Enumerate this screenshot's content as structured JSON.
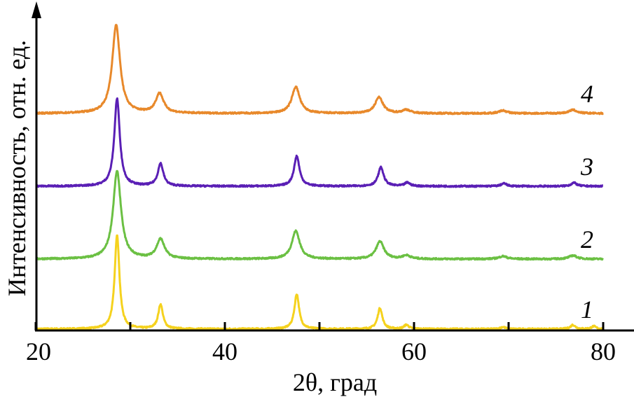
{
  "chart_data": {
    "type": "line",
    "title": "",
    "xlabel": "2θ, град",
    "ylabel": "Интенсивность, отн. ед.",
    "xlim": [
      20,
      80
    ],
    "x_ticks": [
      20,
      30,
      40,
      50,
      60,
      70,
      80
    ],
    "x_tick_labels": [
      "20",
      "40",
      "60",
      "80"
    ],
    "y_ticks": false,
    "grid": false,
    "stacked_offsets": true,
    "series": [
      {
        "label": "1",
        "color": "#f5d21e",
        "offset": 0,
        "width": 0.3,
        "peaks": [
          [
            28.6,
            135
          ],
          [
            33.2,
            35
          ],
          [
            47.6,
            50
          ],
          [
            56.4,
            30
          ],
          [
            59.2,
            6
          ],
          [
            69.4,
            3
          ],
          [
            76.8,
            6
          ],
          [
            79.0,
            4
          ]
        ]
      },
      {
        "label": "2",
        "color": "#6bc043",
        "offset": 100,
        "width": 0.5,
        "peaks": [
          [
            28.6,
            125
          ],
          [
            33.2,
            28
          ],
          [
            47.5,
            40
          ],
          [
            56.4,
            25
          ],
          [
            59.2,
            5
          ],
          [
            69.4,
            4
          ],
          [
            76.8,
            5
          ]
        ]
      },
      {
        "label": "3",
        "color": "#5a1fb5",
        "offset": 204,
        "width": 0.35,
        "peaks": [
          [
            28.6,
            125
          ],
          [
            33.2,
            32
          ],
          [
            47.6,
            43
          ],
          [
            56.5,
            27
          ],
          [
            59.3,
            5
          ],
          [
            69.5,
            4
          ],
          [
            76.9,
            5
          ]
        ]
      },
      {
        "label": "4",
        "color": "#e8892b",
        "offset": 308,
        "width": 0.5,
        "peaks": [
          [
            28.5,
            126
          ],
          [
            33.1,
            28
          ],
          [
            47.5,
            38
          ],
          [
            56.3,
            23
          ],
          [
            59.2,
            5
          ],
          [
            69.4,
            4
          ],
          [
            76.8,
            5
          ]
        ]
      }
    ]
  }
}
